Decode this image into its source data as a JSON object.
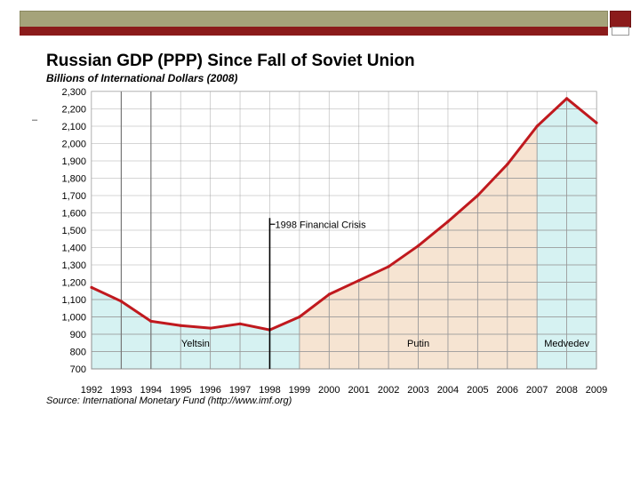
{
  "slide": {
    "colors": {
      "bar_top": "#a5a37a",
      "bar_bottom": "#8b1b1b"
    },
    "dash_glyph": "–"
  },
  "chart_data": {
    "type": "area",
    "title": "Russian GDP (PPP) Since Fall of Soviet Union",
    "subtitle": "Billions of International Dollars (2008)",
    "source": "Source: International Monetary Fund (http://www.imf.org)",
    "ylim": [
      700,
      2300
    ],
    "y_ticks": [
      "700",
      "800",
      "900",
      "1,000",
      "1,100",
      "1,200",
      "1,300",
      "1,400",
      "1,500",
      "1,600",
      "1,700",
      "1,800",
      "1,900",
      "2,000",
      "2,100",
      "2,200",
      "2,300"
    ],
    "x_ticks": [
      "1992",
      "1993",
      "1994",
      "1995",
      "1996",
      "1997",
      "1998",
      "1999",
      "2000",
      "2001",
      "2002",
      "2003",
      "2004",
      "2005",
      "2006",
      "2007",
      "2008",
      "2009"
    ],
    "x": [
      1992,
      1993,
      1994,
      1995,
      1996,
      1997,
      1998,
      1999,
      2000,
      2001,
      2002,
      2003,
      2004,
      2005,
      2006,
      2007,
      2008,
      2009
    ],
    "values": [
      1170,
      1090,
      975,
      950,
      935,
      960,
      925,
      1000,
      1130,
      1210,
      1290,
      1410,
      1550,
      1700,
      1880,
      2100,
      2260,
      2120
    ],
    "grid": true,
    "colors": {
      "line": "#c0191e",
      "era_blue": "#d6f2f2",
      "era_tan": "#f6e4d2",
      "grid": "#999999"
    },
    "eras": [
      {
        "name": "",
        "from": 1992,
        "to": 1993,
        "color": "era_blue"
      },
      {
        "name": "Yeltsin",
        "from": 1993,
        "to": 1999,
        "color": "era_blue"
      },
      {
        "name": "Putin",
        "from": 1999,
        "to": 2007,
        "color": "era_tan"
      },
      {
        "name": "Medvedev",
        "from": 2007,
        "to": 2009,
        "color": "era_blue"
      }
    ],
    "era_dividers": [
      1993,
      1994
    ],
    "annotations": [
      {
        "text": "1998 Financial Crisis",
        "x": 1998,
        "y": 1550
      }
    ]
  }
}
